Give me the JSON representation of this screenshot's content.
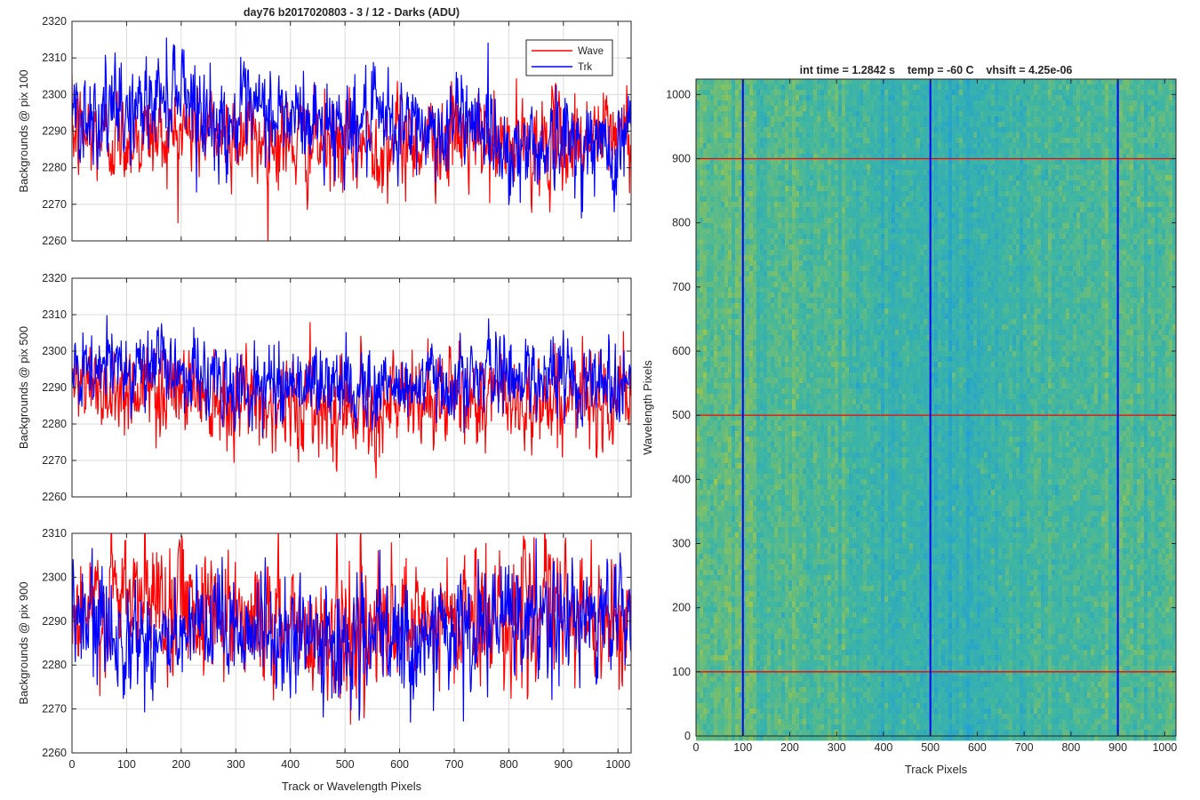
{
  "window_title": "day76 b2017020803 - 3 / 12 - Darks (ADU)",
  "chart_data": [
    {
      "id": "profile-pix100",
      "type": "line",
      "title": "day76 b2017020803 - 3 / 12 - Darks (ADU)",
      "xlabel": "",
      "ylabel": "Backgrounds @ pix 100",
      "xlim": [
        0,
        1024
      ],
      "ylim": [
        2260,
        2320
      ],
      "xticks": [
        0,
        100,
        200,
        300,
        400,
        500,
        600,
        700,
        800,
        900,
        1000
      ],
      "yticks": [
        2260,
        2270,
        2280,
        2290,
        2300,
        2310,
        2320
      ],
      "grid": true,
      "legend": {
        "position": "top-right",
        "entries": [
          "Wave",
          "Trk"
        ]
      },
      "series": [
        {
          "name": "Wave",
          "color": "#ff0000",
          "mean": 2289,
          "noise": 6,
          "anchors": [
            [
              0,
              2289
            ],
            [
              100,
              2288
            ],
            [
              200,
              2290
            ],
            [
              300,
              2289
            ],
            [
              400,
              2287
            ],
            [
              500,
              2286
            ],
            [
              600,
              2287
            ],
            [
              700,
              2288
            ],
            [
              800,
              2285
            ],
            [
              900,
              2287
            ],
            [
              1024,
              2290
            ]
          ]
        },
        {
          "name": "Trk",
          "color": "#0000ff",
          "mean": 2292,
          "noise": 6,
          "anchors": [
            [
              0,
              2296
            ],
            [
              60,
              2294
            ],
            [
              130,
              2296
            ],
            [
              200,
              2304
            ],
            [
              260,
              2291
            ],
            [
              350,
              2295
            ],
            [
              450,
              2292
            ],
            [
              550,
              2292
            ],
            [
              680,
              2290
            ],
            [
              730,
              2296
            ],
            [
              800,
              2284
            ],
            [
              900,
              2288
            ],
            [
              1000,
              2284
            ],
            [
              1024,
              2295
            ]
          ]
        }
      ]
    },
    {
      "id": "profile-pix500",
      "type": "line",
      "title": "",
      "xlabel": "",
      "ylabel": "Backgrounds @ pix 500",
      "xlim": [
        0,
        1024
      ],
      "ylim": [
        2260,
        2320
      ],
      "xticks": [
        0,
        100,
        200,
        300,
        400,
        500,
        600,
        700,
        800,
        900,
        1000
      ],
      "yticks": [
        2260,
        2270,
        2280,
        2290,
        2300,
        2310,
        2320
      ],
      "grid": true,
      "series": [
        {
          "name": "Wave",
          "color": "#ff0000",
          "mean": 2287,
          "noise": 6,
          "anchors": [
            [
              0,
              2290
            ],
            [
              100,
              2290
            ],
            [
              200,
              2290
            ],
            [
              300,
              2288
            ],
            [
              400,
              2285
            ],
            [
              500,
              2286
            ],
            [
              600,
              2285
            ],
            [
              700,
              2287
            ],
            [
              800,
              2287
            ],
            [
              900,
              2286
            ],
            [
              1024,
              2289
            ]
          ]
        },
        {
          "name": "Trk",
          "color": "#0000ff",
          "mean": 2292,
          "noise": 5,
          "anchors": [
            [
              0,
              2292
            ],
            [
              100,
              2297
            ],
            [
              200,
              2295
            ],
            [
              300,
              2289
            ],
            [
              400,
              2292
            ],
            [
              500,
              2290
            ],
            [
              600,
              2290
            ],
            [
              700,
              2292
            ],
            [
              800,
              2294
            ],
            [
              900,
              2293
            ],
            [
              1024,
              2292
            ]
          ]
        }
      ]
    },
    {
      "id": "profile-pix900",
      "type": "line",
      "title": "",
      "xlabel": "Track or Wavelength Pixels",
      "ylabel": "Backgrounds @ pix 900",
      "xlim": [
        0,
        1024
      ],
      "ylim": [
        2260,
        2310
      ],
      "xticks": [
        0,
        100,
        200,
        300,
        400,
        500,
        600,
        700,
        800,
        900,
        1000
      ],
      "yticks": [
        2260,
        2270,
        2280,
        2290,
        2300,
        2310
      ],
      "grid": true,
      "series": [
        {
          "name": "Wave",
          "color": "#ff0000",
          "mean": 2293,
          "noise": 7,
          "anchors": [
            [
              0,
              2290
            ],
            [
              100,
              2295
            ],
            [
              200,
              2296
            ],
            [
              300,
              2292
            ],
            [
              400,
              2288
            ],
            [
              500,
              2288
            ],
            [
              600,
              2287
            ],
            [
              700,
              2290
            ],
            [
              800,
              2292
            ],
            [
              900,
              2292
            ],
            [
              1024,
              2290
            ]
          ]
        },
        {
          "name": "Trk",
          "color": "#0000ff",
          "mean": 2288,
          "noise": 6,
          "anchors": [
            [
              0,
              2290
            ],
            [
              100,
              2287
            ],
            [
              200,
              2285
            ],
            [
              300,
              2290
            ],
            [
              400,
              2285
            ],
            [
              500,
              2285
            ],
            [
              600,
              2285
            ],
            [
              700,
              2287
            ],
            [
              800,
              2290
            ],
            [
              900,
              2290
            ],
            [
              1024,
              2292
            ]
          ]
        }
      ]
    },
    {
      "id": "dark-frame-image",
      "type": "heatmap",
      "title": "int time = 1.2842 s    temp = -60 C    vhsift = 4.25e-06",
      "xlabel": "Track Pixels",
      "ylabel": "Wavelength Pixels",
      "xlim": [
        0,
        1024
      ],
      "ylim": [
        0,
        1024
      ],
      "xticks": [
        0,
        100,
        200,
        300,
        400,
        500,
        600,
        700,
        800,
        900,
        1000
      ],
      "yticks": [
        0,
        100,
        200,
        300,
        400,
        500,
        600,
        700,
        800,
        900,
        1000
      ],
      "colormap": "parula",
      "colors": {
        "low": "#1f9fd8",
        "mid": "#3fb6a2",
        "high": "#a9c63f"
      },
      "horizontal_markers": {
        "color": "#ff0000",
        "values": [
          100,
          500,
          900
        ]
      },
      "vertical_markers": {
        "color": "#0000ff",
        "values": [
          100,
          500,
          900
        ]
      }
    }
  ]
}
